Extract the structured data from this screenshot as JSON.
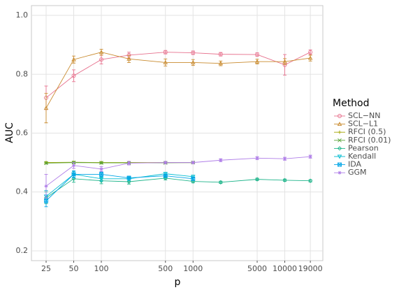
{
  "chart_data": {
    "type": "line",
    "x_label": "p",
    "y_label": "AUC",
    "legend_title": "Method",
    "x": [
      25,
      50,
      100,
      200,
      500,
      1000,
      2000,
      5000,
      10000,
      19000
    ],
    "xlim": [
      17.3,
      26000
    ],
    "xticks": [
      25,
      50,
      100,
      500,
      1000,
      5000,
      10000,
      19000
    ],
    "xscale": "log",
    "ylim": [
      0.1667,
      1.0333
    ],
    "yticks": [
      {
        "value": 0.2,
        "label": "0.2"
      },
      {
        "value": 0.4,
        "label": "0.4"
      },
      {
        "value": 0.6,
        "label": "0.6"
      },
      {
        "value": 0.8,
        "label": "0.8"
      },
      {
        "value": 1.0,
        "label": "1.0"
      }
    ],
    "grid": true,
    "legend": "right",
    "series": [
      {
        "name": "SCL−NN",
        "color": "#E7728E",
        "marker": "circle",
        "values": [
          0.72,
          0.795,
          0.85,
          0.865,
          0.875,
          0.873,
          0.868,
          0.867,
          0.832,
          0.875
        ],
        "errors": [
          0.04,
          0.02,
          0.015,
          0.01,
          0.006,
          0.006,
          0.006,
          0.006,
          0.035,
          0.008
        ]
      },
      {
        "name": "SCL−L1",
        "color": "#C98B2F",
        "marker": "triangle",
        "values": [
          0.685,
          0.85,
          0.875,
          0.852,
          0.84,
          0.84,
          0.837,
          0.843,
          0.843,
          0.855
        ],
        "errors": [
          0.05,
          0.012,
          0.01,
          0.012,
          0.012,
          0.01,
          0.008,
          0.008,
          0.01,
          0.01
        ]
      },
      {
        "name": "RFCI (0.5)",
        "color": "#A3A500",
        "marker": "plus",
        "values": [
          0.5,
          0.501,
          0.5,
          0.5,
          0.5,
          0.5,
          null,
          null,
          null,
          null
        ],
        "errors": [
          0.003,
          0.003,
          0.003,
          0.003,
          0.003,
          0.003,
          null,
          null,
          null,
          null
        ]
      },
      {
        "name": "RFCI (0.01)",
        "color": "#5BA53A",
        "marker": "cross",
        "values": [
          0.498,
          0.5,
          0.499,
          0.499,
          0.499,
          0.5,
          null,
          null,
          null,
          null
        ],
        "errors": [
          0.003,
          0.003,
          0.003,
          0.003,
          0.003,
          0.003,
          null,
          null,
          null,
          null
        ]
      },
      {
        "name": "Pearson",
        "color": "#1EB48A",
        "marker": "diamond",
        "values": [
          0.38,
          0.445,
          0.438,
          0.435,
          0.447,
          0.436,
          0.433,
          0.443,
          0.44,
          0.438
        ],
        "errors": [
          0.02,
          0.012,
          0.01,
          0.008,
          0.006,
          0.005,
          0.004,
          0.004,
          0.004,
          0.004
        ]
      },
      {
        "name": "Kendall",
        "color": "#00BCD0",
        "marker": "triangle-down",
        "values": [
          0.385,
          0.46,
          0.445,
          0.445,
          0.462,
          0.452,
          null,
          null,
          null,
          null
        ],
        "errors": [
          0.02,
          0.01,
          0.008,
          0.006,
          0.005,
          0.005,
          null,
          null,
          null,
          null
        ]
      },
      {
        "name": "IDA",
        "color": "#00A5E6",
        "marker": "square-cross",
        "values": [
          0.37,
          0.46,
          0.46,
          0.448,
          0.455,
          0.445,
          null,
          null,
          null,
          null
        ],
        "errors": [
          0.02,
          0.012,
          0.008,
          0.006,
          0.005,
          0.005,
          null,
          null,
          null,
          null
        ]
      },
      {
        "name": "GGM",
        "color": "#B07FE8",
        "marker": "asterisk",
        "values": [
          0.42,
          0.49,
          0.478,
          0.498,
          0.5,
          0.5,
          0.508,
          0.515,
          0.513,
          0.52
        ],
        "errors": [
          0.04,
          0.01,
          0.008,
          0.006,
          0.004,
          0.004,
          0.005,
          0.005,
          0.005,
          0.005
        ]
      }
    ]
  }
}
